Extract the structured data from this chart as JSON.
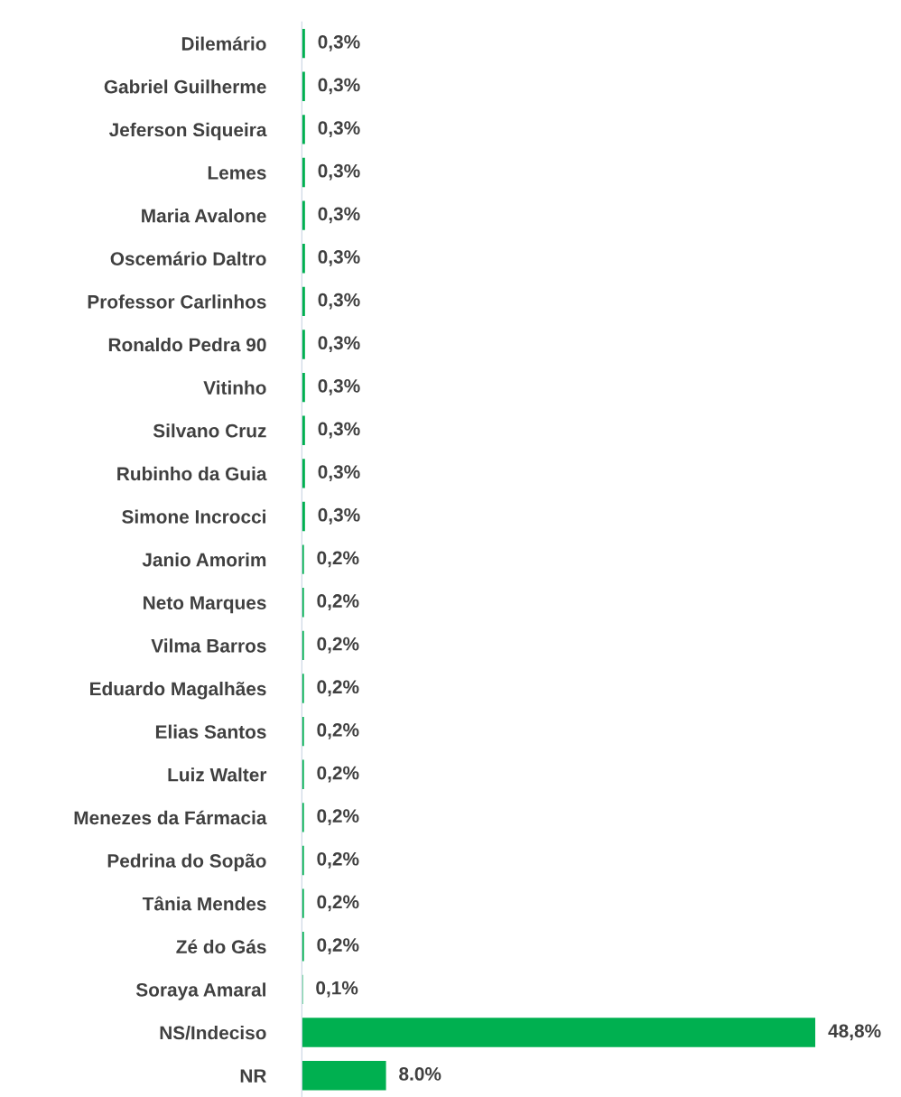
{
  "chart_data": {
    "type": "bar",
    "orientation": "horizontal",
    "categories": [
      "Dilemário",
      "Gabriel Guilherme",
      "Jeferson Siqueira",
      "Lemes",
      "Maria Avalone",
      "Oscemário Daltro",
      "Professor Carlinhos",
      "Ronaldo Pedra 90",
      "Vitinho",
      "Silvano Cruz",
      "Rubinho da Guia",
      "Simone Incrocci",
      "Janio Amorim",
      "Neto Marques",
      "Vilma Barros",
      "Eduardo Magalhães",
      "Elias Santos",
      "Luiz Walter",
      "Menezes da Fármacia",
      "Pedrina do Sopão",
      "Tânia Mendes",
      "Zé do Gás",
      "Soraya Amaral",
      "NS/Indeciso",
      "NR"
    ],
    "values": [
      0.3,
      0.3,
      0.3,
      0.3,
      0.3,
      0.3,
      0.3,
      0.3,
      0.3,
      0.3,
      0.3,
      0.3,
      0.2,
      0.2,
      0.2,
      0.2,
      0.2,
      0.2,
      0.2,
      0.2,
      0.2,
      0.2,
      0.1,
      48.8,
      8.0
    ],
    "value_labels": [
      "0,3%",
      "0,3%",
      "0,3%",
      "0,3%",
      "0,3%",
      "0,3%",
      "0,3%",
      "0,3%",
      "0,3%",
      "0,3%",
      "0,3%",
      "0,3%",
      "0,2%",
      "0,2%",
      "0,2%",
      "0,2%",
      "0,2%",
      "0,2%",
      "0,2%",
      "0,2%",
      "0,2%",
      "0,2%",
      "0,1%",
      "48,8%",
      "8.0%"
    ],
    "color": "#00b050",
    "tick_labels": "y",
    "grid": false,
    "legend": false
  }
}
